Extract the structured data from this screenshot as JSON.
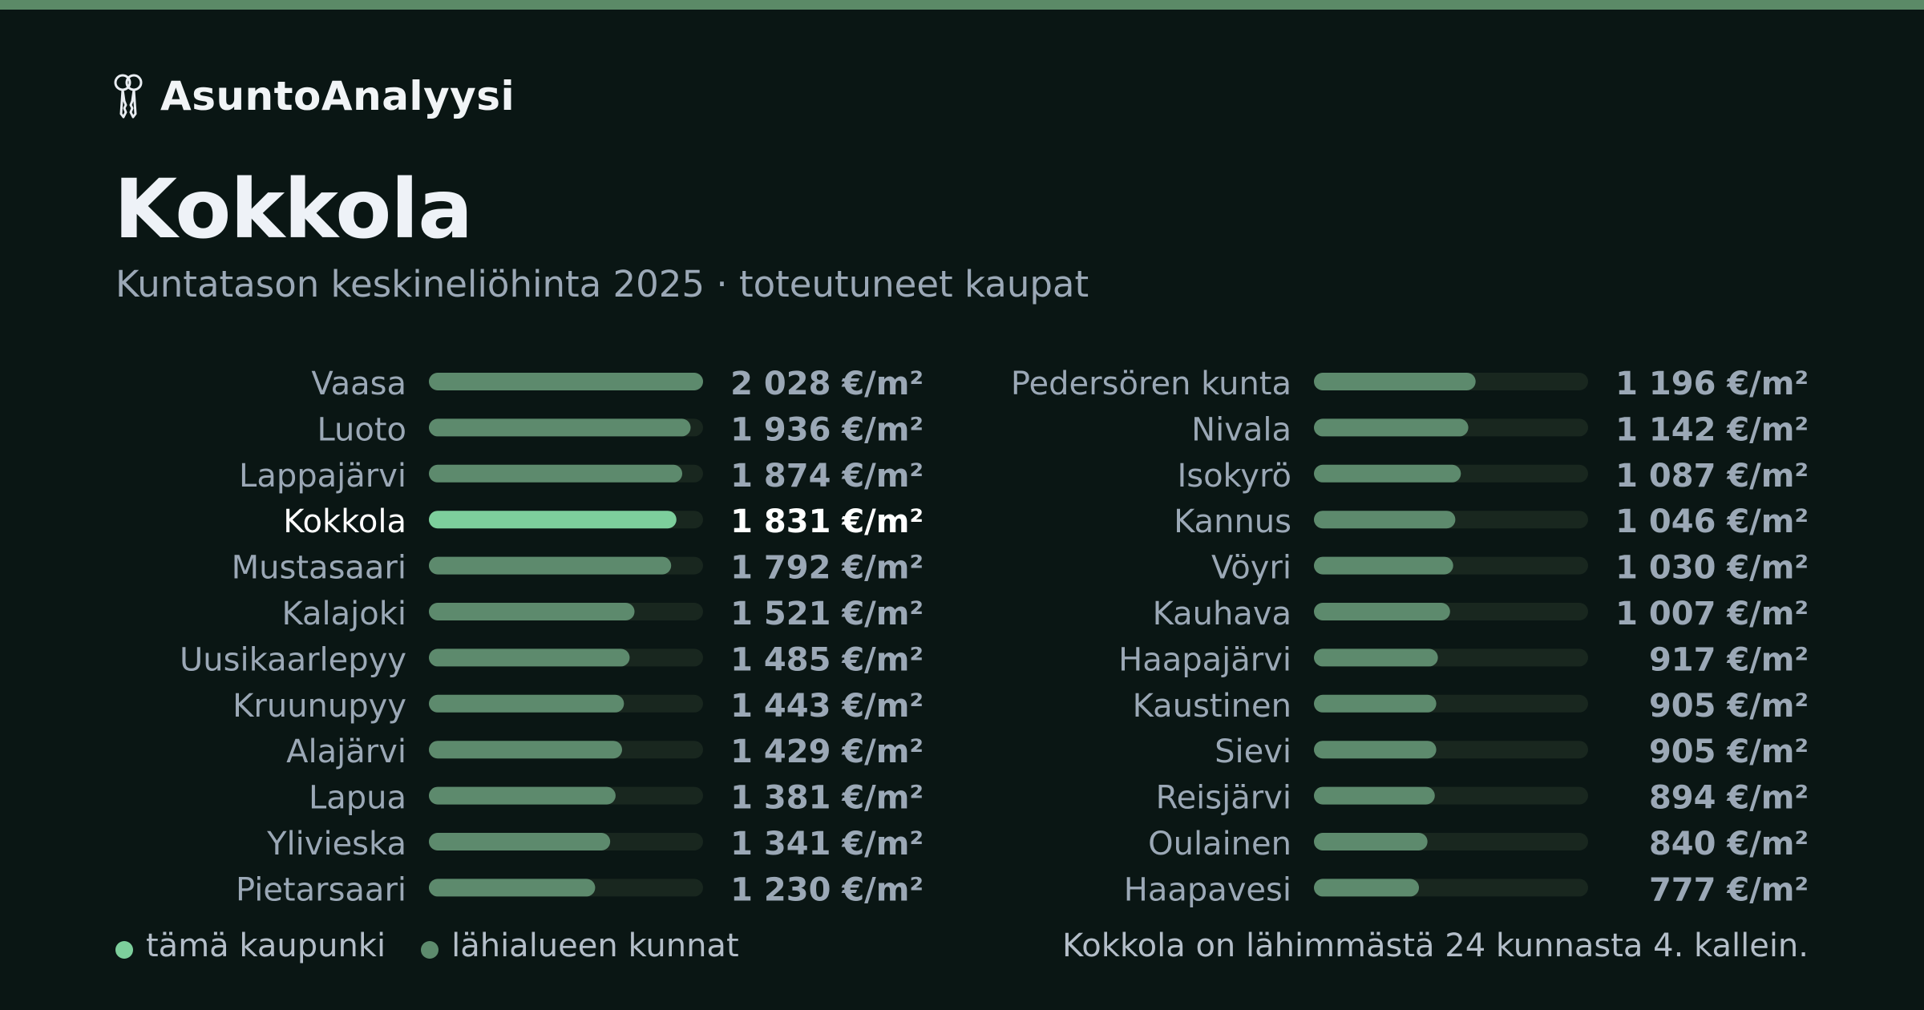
{
  "brand": {
    "name": "AsuntoAnalyysi",
    "icon": "keys-icon"
  },
  "header": {
    "title": "Kokkola",
    "subtitle": "Kuntatason keskineliöhinta 2025 · toteutuneet kaupat"
  },
  "colors": {
    "background": "#0a1614",
    "accent_bar": "#5b8a67",
    "highlight": "#7dcf9c",
    "bar": "#5d8a6d",
    "track": "#19271f",
    "text_muted": "#9ba8b6",
    "text_bright": "#ffffff"
  },
  "chart_data": {
    "type": "bar",
    "orientation": "horizontal",
    "unit": "€/m²",
    "highlight": "Kokkola",
    "categories": [
      "Vaasa",
      "Luoto",
      "Lappajärvi",
      "Kokkola",
      "Mustasaari",
      "Kalajoki",
      "Uusikaarlepyy",
      "Kruunupyy",
      "Alajärvi",
      "Lapua",
      "Ylivieska",
      "Pietarsaari",
      "Pedersören kunta",
      "Nivala",
      "Isokyrö",
      "Kannus",
      "Vöyri",
      "Kauhava",
      "Haapajärvi",
      "Kaustinen",
      "Sievi",
      "Reisjärvi",
      "Oulainen",
      "Haapavesi"
    ],
    "values": [
      2028,
      1936,
      1874,
      1831,
      1792,
      1521,
      1485,
      1443,
      1429,
      1381,
      1341,
      1230,
      1196,
      1142,
      1087,
      1046,
      1030,
      1007,
      917,
      905,
      905,
      894,
      840,
      777
    ],
    "value_labels": [
      "2 028 €/m²",
      "1 936 €/m²",
      "1 874 €/m²",
      "1 831 €/m²",
      "1 792 €/m²",
      "1 521 €/m²",
      "1 485 €/m²",
      "1 443 €/m²",
      "1 429 €/m²",
      "1 381 €/m²",
      "1 341 €/m²",
      "1 230 €/m²",
      "1 196 €/m²",
      "1 142 €/m²",
      "1 087 €/m²",
      "1 046 €/m²",
      "1 030 €/m²",
      "1 007 €/m²",
      "917 €/m²",
      "905 €/m²",
      "905 €/m²",
      "894 €/m²",
      "840 €/m²",
      "777 €/m²"
    ],
    "xlim": [
      0,
      2028
    ],
    "columns": 2,
    "grid": false
  },
  "legend": [
    {
      "label": "tämä kaupunki",
      "color": "#7dcf9c"
    },
    {
      "label": "lähialueen kunnat",
      "color": "#5d8a6d"
    }
  ],
  "footnote": "Kokkola on lähimmästä 24 kunnasta 4. kallein."
}
